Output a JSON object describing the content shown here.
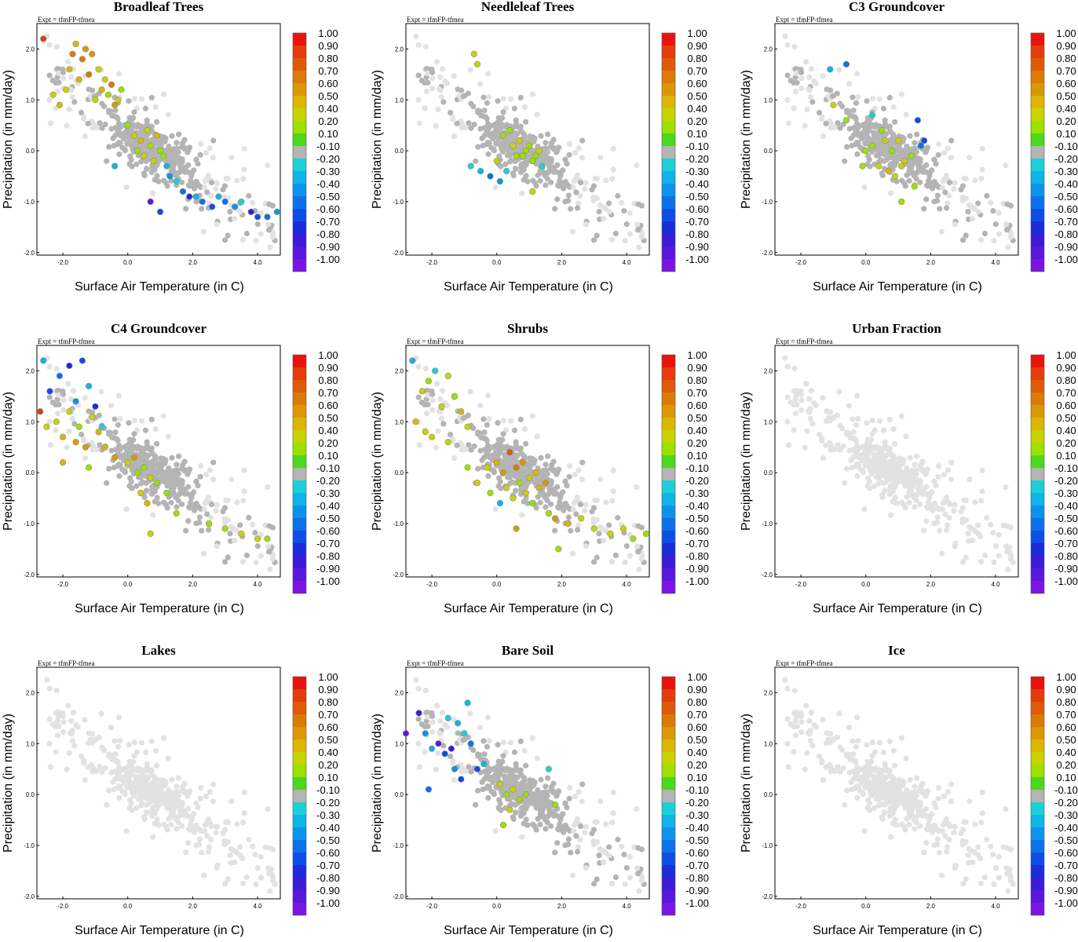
{
  "figure": {
    "expt_label": "Expt = tfmFP-tfmea",
    "xlabel": "Surface Air Temperature (in C)",
    "ylabel": "Precipitation (in mm/day)"
  },
  "colorbar": {
    "levels": [
      "1.00",
      "0.90",
      "0.80",
      "0.70",
      "0.60",
      "0.50",
      "0.40",
      "0.20",
      "0.10",
      "-0.10",
      "-0.20",
      "-0.30",
      "-0.40",
      "-0.50",
      "-0.60",
      "-0.70",
      "-0.80",
      "-0.90",
      "-1.00"
    ],
    "colors": [
      "#e8140c",
      "#e43c0a",
      "#de5a08",
      "#dc7a06",
      "#dc9804",
      "#dcb602",
      "#c8d400",
      "#9ee000",
      "#4cd81c",
      "#b4b4b4",
      "#1cd0d8",
      "#10b4e8",
      "#0c94ec",
      "#0c72ea",
      "#0c4ee6",
      "#1c2cdc",
      "#3c1cd8",
      "#5a18dc",
      "#7c14e4"
    ]
  },
  "chart_data": [
    {
      "type": "scatter",
      "title": "Broadleaf Trees",
      "x_ticks": [
        "-2.0",
        "0.0",
        "2.0",
        "4.0"
      ],
      "y_ticks": [
        "2.0",
        "1.0",
        "0.0",
        "-1.0",
        "-2.0"
      ],
      "xlim": [
        -2.8,
        4.7
      ],
      "ylim": [
        -2.05,
        2.5
      ],
      "highlight": [
        [
          -2.6,
          2.2,
          0.9
        ],
        [
          -2.3,
          1.1,
          0.4
        ],
        [
          -2.1,
          0.9,
          0.5
        ],
        [
          -1.9,
          1.2,
          0.3
        ],
        [
          -1.8,
          1.6,
          0.5
        ],
        [
          -1.7,
          1.9,
          0.7
        ],
        [
          -1.6,
          2.1,
          0.5
        ],
        [
          -1.5,
          1.4,
          0.5
        ],
        [
          -1.4,
          1.8,
          0.7
        ],
        [
          -1.3,
          2.0,
          0.6
        ],
        [
          -1.2,
          1.5,
          0.7
        ],
        [
          -1.1,
          1.9,
          0.6
        ],
        [
          -1.0,
          1.0,
          0.4
        ],
        [
          -0.9,
          1.6,
          0.3
        ],
        [
          -0.8,
          1.2,
          0.5
        ],
        [
          -0.7,
          1.4,
          0.3
        ],
        [
          -0.6,
          1.1,
          0.2
        ],
        [
          -0.5,
          1.3,
          0.7
        ],
        [
          -0.4,
          0.9,
          0.6
        ],
        [
          -0.3,
          1.0,
          0.4
        ],
        [
          -0.2,
          1.2,
          0.2
        ],
        [
          0.0,
          0.5,
          0.2
        ],
        [
          0.2,
          0.3,
          0.4
        ],
        [
          0.3,
          0.0,
          0.2
        ],
        [
          0.4,
          0.2,
          0.5
        ],
        [
          0.5,
          -0.1,
          0.3
        ],
        [
          0.6,
          0.4,
          0.4
        ],
        [
          0.7,
          0.1,
          0.2
        ],
        [
          0.8,
          -0.2,
          0.3
        ],
        [
          0.9,
          0.3,
          0.5
        ],
        [
          1.0,
          0.0,
          0.2
        ],
        [
          1.1,
          -0.1,
          0.2
        ],
        [
          1.2,
          -0.3,
          -0.3
        ],
        [
          1.3,
          -0.5,
          -0.4
        ],
        [
          1.5,
          -0.6,
          -0.2
        ],
        [
          1.7,
          -0.8,
          -0.5
        ],
        [
          1.9,
          -0.9,
          -0.7
        ],
        [
          2.1,
          -0.9,
          -0.3
        ],
        [
          2.3,
          -1.0,
          -0.5
        ],
        [
          2.6,
          -1.1,
          -0.6
        ],
        [
          2.8,
          -0.9,
          -0.3
        ],
        [
          3.0,
          -1.0,
          -0.5
        ],
        [
          3.3,
          -1.1,
          -0.4
        ],
        [
          3.5,
          -1.0,
          -0.2
        ],
        [
          3.8,
          -1.2,
          -0.8
        ],
        [
          4.0,
          -1.3,
          -0.6
        ],
        [
          4.3,
          -1.3,
          -0.5
        ],
        [
          4.6,
          -1.2,
          -0.4
        ],
        [
          1.0,
          -1.2,
          -0.6
        ],
        [
          0.7,
          -1.0,
          -0.9
        ],
        [
          -0.4,
          -0.3,
          -0.3
        ]
      ]
    },
    {
      "type": "scatter",
      "title": "Needleleaf Trees",
      "x_ticks": [
        "-2.0",
        "0.0",
        "2.0",
        "4.0"
      ],
      "y_ticks": [
        "2.0",
        "1.0",
        "0.0",
        "-1.0",
        "-2.0"
      ],
      "xlim": [
        -2.8,
        4.7
      ],
      "ylim": [
        -2.05,
        2.5
      ],
      "highlight": [
        [
          -0.7,
          1.9,
          0.3
        ],
        [
          -0.6,
          1.7,
          0.4
        ],
        [
          0.2,
          0.3,
          0.2
        ],
        [
          0.4,
          0.4,
          0.2
        ],
        [
          0.5,
          0.1,
          0.3
        ],
        [
          0.6,
          -0.1,
          0.2
        ],
        [
          0.7,
          0.2,
          0.3
        ],
        [
          0.8,
          -0.1,
          0.2
        ],
        [
          0.9,
          0.0,
          0.2
        ],
        [
          1.0,
          0.1,
          0.2
        ],
        [
          1.1,
          -0.2,
          0.2
        ],
        [
          1.2,
          -0.1,
          0.2
        ],
        [
          1.3,
          0.0,
          0.3
        ],
        [
          0.3,
          -0.4,
          -0.2
        ],
        [
          0.1,
          -0.6,
          -0.4
        ],
        [
          -0.2,
          -0.5,
          -0.5
        ],
        [
          -0.5,
          -0.4,
          -0.3
        ],
        [
          -0.8,
          -0.3,
          -0.2
        ],
        [
          0.0,
          -0.2,
          0.3
        ],
        [
          1.1,
          -0.8,
          0.3
        ],
        [
          1.4,
          -0.3,
          -0.2
        ]
      ]
    },
    {
      "type": "scatter",
      "title": "C3 Groundcover",
      "x_ticks": [
        "-2.0",
        "0.0",
        "2.0",
        "4.0"
      ],
      "y_ticks": [
        "2.0",
        "1.0",
        "0.0",
        "-1.0",
        "-2.0"
      ],
      "xlim": [
        -2.8,
        4.7
      ],
      "ylim": [
        -2.05,
        2.5
      ],
      "highlight": [
        [
          -1.0,
          0.9,
          0.3
        ],
        [
          -0.6,
          0.6,
          0.2
        ],
        [
          -1.1,
          1.6,
          -0.3
        ],
        [
          -0.6,
          1.7,
          -0.5
        ],
        [
          0.5,
          0.4,
          0.2
        ],
        [
          0.6,
          0.2,
          0.3
        ],
        [
          0.8,
          0.0,
          0.2
        ],
        [
          1.0,
          0.2,
          0.4
        ],
        [
          1.2,
          -0.2,
          0.3
        ],
        [
          1.4,
          -0.1,
          0.2
        ],
        [
          0.2,
          0.1,
          0.2
        ],
        [
          0.0,
          0.0,
          0.2
        ],
        [
          0.7,
          -0.4,
          0.5
        ],
        [
          0.9,
          -0.5,
          0.4
        ],
        [
          1.1,
          -0.3,
          0.3
        ],
        [
          1.5,
          -0.7,
          0.2
        ],
        [
          1.6,
          0.6,
          -0.6
        ],
        [
          1.8,
          0.2,
          -0.6
        ],
        [
          -0.1,
          -0.3,
          0.2
        ],
        [
          0.4,
          -0.3,
          0.4
        ],
        [
          1.1,
          -1.0,
          0.2
        ],
        [
          0.2,
          0.7,
          -0.2
        ],
        [
          1.7,
          0.1,
          -0.5
        ]
      ]
    },
    {
      "type": "scatter",
      "title": "C4 Groundcover",
      "x_ticks": [
        "-2.0",
        "0.0",
        "2.0",
        "4.0"
      ],
      "y_ticks": [
        "2.0",
        "1.0",
        "0.0",
        "-1.0",
        "-2.0"
      ],
      "xlim": [
        -2.8,
        4.7
      ],
      "ylim": [
        -2.05,
        2.5
      ],
      "highlight": [
        [
          -2.6,
          2.2,
          -0.3
        ],
        [
          -2.4,
          1.6,
          -0.6
        ],
        [
          -2.1,
          1.9,
          -0.5
        ],
        [
          -1.8,
          2.1,
          -0.7
        ],
        [
          -1.6,
          1.4,
          -0.4
        ],
        [
          -1.4,
          2.2,
          -0.6
        ],
        [
          -1.2,
          1.7,
          -0.3
        ],
        [
          -1.0,
          1.3,
          -0.7
        ],
        [
          -0.8,
          0.9,
          -0.2
        ],
        [
          -2.7,
          1.2,
          0.9
        ],
        [
          -2.5,
          0.9,
          0.3
        ],
        [
          -2.2,
          1.0,
          0.4
        ],
        [
          -2.0,
          0.7,
          0.5
        ],
        [
          -1.8,
          1.2,
          0.4
        ],
        [
          -1.6,
          0.6,
          0.6
        ],
        [
          -1.5,
          0.9,
          0.2
        ],
        [
          -1.3,
          0.5,
          0.6
        ],
        [
          -1.1,
          1.1,
          0.3
        ],
        [
          -0.9,
          0.8,
          0.5
        ],
        [
          -0.7,
          0.5,
          0.5
        ],
        [
          -0.4,
          0.3,
          0.6
        ],
        [
          0.0,
          0.2,
          0.3
        ],
        [
          0.3,
          0.0,
          0.2
        ],
        [
          0.5,
          0.1,
          0.2
        ],
        [
          0.7,
          -0.1,
          0.3
        ],
        [
          0.9,
          -0.2,
          0.2
        ],
        [
          1.2,
          -0.4,
          0.2
        ],
        [
          0.6,
          -0.6,
          0.5
        ],
        [
          0.4,
          -0.4,
          0.4
        ],
        [
          0.2,
          0.3,
          0.6
        ],
        [
          2.5,
          -1.0,
          0.2
        ],
        [
          3.0,
          -1.1,
          0.2
        ],
        [
          3.5,
          -1.2,
          0.3
        ],
        [
          4.0,
          -1.3,
          0.4
        ],
        [
          4.3,
          -1.3,
          0.2
        ],
        [
          0.7,
          -1.2,
          0.4
        ],
        [
          1.5,
          -0.8,
          0.2
        ],
        [
          -2.0,
          0.2,
          0.5
        ],
        [
          -1.2,
          0.1,
          0.2
        ]
      ]
    },
    {
      "type": "scatter",
      "title": "Shrubs",
      "x_ticks": [
        "-2.0",
        "0.0",
        "2.0",
        "4.0"
      ],
      "y_ticks": [
        "2.0",
        "1.0",
        "0.0",
        "-1.0",
        "-2.0"
      ],
      "xlim": [
        -2.8,
        4.7
      ],
      "ylim": [
        -2.05,
        2.5
      ],
      "highlight": [
        [
          -2.6,
          2.2,
          -0.3
        ],
        [
          -2.3,
          1.6,
          0.4
        ],
        [
          -2.1,
          1.8,
          0.2
        ],
        [
          -1.9,
          2.0,
          -0.2
        ],
        [
          -1.7,
          1.3,
          0.3
        ],
        [
          -1.5,
          1.9,
          0.4
        ],
        [
          -1.3,
          1.5,
          0.2
        ],
        [
          -1.1,
          1.2,
          0.5
        ],
        [
          -0.9,
          0.9,
          0.3
        ],
        [
          -2.5,
          1.0,
          0.5
        ],
        [
          -2.2,
          0.8,
          0.3
        ],
        [
          -2.0,
          0.7,
          0.4
        ],
        [
          -0.3,
          0.1,
          0.4
        ],
        [
          0.0,
          0.2,
          0.5
        ],
        [
          0.2,
          0.0,
          0.6
        ],
        [
          0.4,
          0.4,
          0.8
        ],
        [
          0.6,
          0.1,
          0.7
        ],
        [
          0.8,
          0.2,
          0.6
        ],
        [
          1.0,
          -0.1,
          0.4
        ],
        [
          1.2,
          0.0,
          0.5
        ],
        [
          0.3,
          -0.3,
          0.3
        ],
        [
          0.5,
          -0.5,
          0.4
        ],
        [
          0.7,
          -0.2,
          0.2
        ],
        [
          0.9,
          -0.4,
          0.3
        ],
        [
          1.1,
          -0.6,
          0.2
        ],
        [
          1.3,
          -0.3,
          0.5
        ],
        [
          1.5,
          -0.2,
          0.6
        ],
        [
          0.1,
          -0.6,
          -0.3
        ],
        [
          -0.2,
          -0.4,
          0.2
        ],
        [
          -0.6,
          -0.2,
          0.3
        ],
        [
          -0.9,
          0.1,
          0.2
        ],
        [
          1.8,
          -0.9,
          0.6
        ],
        [
          2.2,
          -1.0,
          0.5
        ],
        [
          2.6,
          -0.9,
          0.4
        ],
        [
          3.0,
          -1.1,
          0.3
        ],
        [
          3.5,
          -1.2,
          0.4
        ],
        [
          3.9,
          -1.1,
          0.3
        ],
        [
          4.2,
          -1.3,
          0.2
        ],
        [
          4.6,
          -1.2,
          0.2
        ],
        [
          1.9,
          -1.5,
          0.2
        ],
        [
          0.6,
          -1.1,
          0.6
        ],
        [
          1.6,
          -0.8,
          0.2
        ],
        [
          -1.5,
          0.6,
          0.3
        ]
      ]
    },
    {
      "type": "scatter",
      "title": "Urban Fraction",
      "x_ticks": [
        "-2.0",
        "0.0",
        "2.0",
        "4.0"
      ],
      "y_ticks": [
        "2.0",
        "1.0",
        "0.0",
        "-1.0",
        "-2.0"
      ],
      "xlim": [
        -2.8,
        4.7
      ],
      "ylim": [
        -2.05,
        2.5
      ],
      "highlight": []
    },
    {
      "type": "scatter",
      "title": "Lakes",
      "x_ticks": [
        "-2.0",
        "0.0",
        "2.0",
        "4.0"
      ],
      "y_ticks": [
        "2.0",
        "1.0",
        "0.0",
        "-1.0",
        "-2.0"
      ],
      "xlim": [
        -2.8,
        4.7
      ],
      "ylim": [
        -2.05,
        2.5
      ],
      "highlight": []
    },
    {
      "type": "scatter",
      "title": "Bare Soil",
      "x_ticks": [
        "-2.0",
        "0.0",
        "2.0",
        "4.0"
      ],
      "y_ticks": [
        "2.0",
        "1.0",
        "0.0",
        "-1.0",
        "-2.0"
      ],
      "xlim": [
        -2.8,
        4.7
      ],
      "ylim": [
        -2.05,
        2.5
      ],
      "highlight": [
        [
          -2.8,
          1.2,
          -0.9
        ],
        [
          -2.4,
          1.6,
          -0.8
        ],
        [
          -2.2,
          1.2,
          -0.4
        ],
        [
          -2.0,
          0.9,
          -0.3
        ],
        [
          -1.8,
          1.0,
          -0.9
        ],
        [
          -1.6,
          0.8,
          -0.6
        ],
        [
          -1.4,
          0.9,
          -0.8
        ],
        [
          -1.2,
          1.4,
          -0.3
        ],
        [
          -1.0,
          1.2,
          -0.2
        ],
        [
          -0.8,
          1.0,
          -0.5
        ],
        [
          -1.3,
          0.5,
          -0.4
        ],
        [
          -1.1,
          0.3,
          -0.6
        ],
        [
          -2.1,
          0.1,
          -0.5
        ],
        [
          -0.6,
          0.5,
          -0.6
        ],
        [
          -0.4,
          0.6,
          -0.3
        ],
        [
          0.1,
          0.2,
          0.3
        ],
        [
          0.3,
          0.0,
          0.2
        ],
        [
          0.5,
          0.1,
          0.4
        ],
        [
          0.7,
          -0.1,
          0.2
        ],
        [
          0.9,
          0.0,
          0.2
        ],
        [
          0.4,
          -0.3,
          0.3
        ],
        [
          0.2,
          -0.6,
          0.2
        ],
        [
          1.6,
          0.5,
          -0.2
        ],
        [
          1.8,
          -0.2,
          0.2
        ],
        [
          -1.5,
          1.5,
          -0.2
        ],
        [
          -0.9,
          1.8,
          -0.3
        ]
      ]
    },
    {
      "type": "scatter",
      "title": "Ice",
      "x_ticks": [
        "-2.0",
        "0.0",
        "2.0",
        "4.0"
      ],
      "y_ticks": [
        "2.0",
        "1.0",
        "0.0",
        "-1.0",
        "-2.0"
      ],
      "xlim": [
        -2.8,
        4.7
      ],
      "ylim": [
        -2.05,
        2.5
      ],
      "highlight": []
    }
  ]
}
